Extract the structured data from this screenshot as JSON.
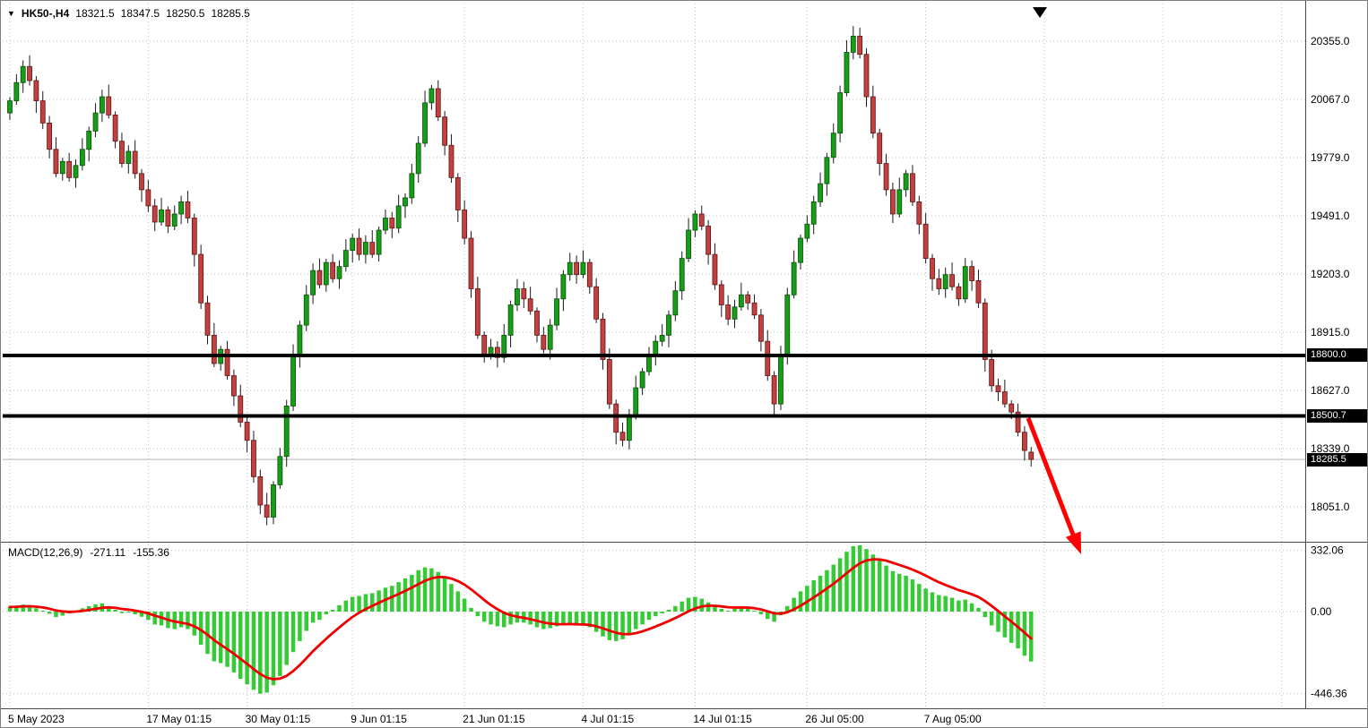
{
  "header": {
    "symbol": "HK50-,H4",
    "open": "18321.5",
    "high": "18347.5",
    "low": "18250.5",
    "close": "18285.5"
  },
  "macd_header": {
    "label": "MACD(12,26,9)",
    "macd_value": "-271.11",
    "signal_value": "-155.36"
  },
  "price_axis": {
    "ticks": [
      20355.0,
      20067.0,
      19779.0,
      19491.0,
      19203.0,
      18915.0,
      18627.0,
      18339.0,
      18051.0
    ],
    "tick_labels": [
      "20355.0",
      "20067.0",
      "19779.0",
      "19491.0",
      "19203.0",
      "18915.0",
      "18627.0",
      "18339.0",
      "18051.0"
    ],
    "level_tags": [
      {
        "label": "18800.0",
        "value": 18800.0
      },
      {
        "label": "18500.7",
        "value": 18500.7
      }
    ],
    "current_price_tag": {
      "label": "18285.5",
      "value": 18285.5
    }
  },
  "time_axis": {
    "labels": [
      "5 May 2023",
      "17 May 01:15",
      "30 May 01:15",
      "9 Jun 01:15",
      "21 Jun 01:15",
      "4 Jul 01:15",
      "14 Jul 01:15",
      "26 Jul 05:00",
      "7 Aug 05:00"
    ],
    "tick_indices": [
      0,
      21,
      36,
      52,
      69,
      87,
      104,
      121,
      139
    ]
  },
  "macd_axis": {
    "ticks": [
      332.06,
      0.0,
      -446.36
    ],
    "tick_labels": [
      "332.06",
      "0.00",
      "-446.36"
    ]
  },
  "colors": {
    "up_candle": "#179e17",
    "down_candle": "#c14040",
    "macd_histogram": "#35cb35",
    "macd_signal": "#ef0000",
    "level_line": "#000000",
    "trend_arrow": "#ff0000",
    "grid": "#bdbdbd",
    "tag_background": "#000000",
    "tag_text": "#ffffff"
  },
  "chart_data": {
    "type": "candlestick+macd",
    "symbol": "HK50-",
    "timeframe": "H4",
    "title": "HK50- H4 chart with MACD(12,26,9) and horizontal support/resistance levels",
    "current_bar": {
      "open": 18321.5,
      "high": 18347.5,
      "low": 18250.5,
      "close": 18285.5
    },
    "support_resistance_levels": [
      18800.0,
      18500.7
    ],
    "current_price": 18285.5,
    "price_axis_ticks": [
      20355.0,
      20067.0,
      19779.0,
      19491.0,
      19203.0,
      18915.0,
      18627.0,
      18339.0,
      18051.0
    ],
    "x_tick_labels": [
      "5 May 2023",
      "17 May 01:15",
      "30 May 01:15",
      "9 Jun 01:15",
      "21 Jun 01:15",
      "4 Jul 01:15",
      "14 Jul 01:15",
      "26 Jul 05:00",
      "7 Aug 05:00"
    ],
    "macd_axis_ticks": [
      332.06,
      0.0,
      -446.36
    ],
    "candles": {
      "first_open": 20000,
      "closes": [
        20060,
        20150,
        20230,
        20160,
        20060,
        19950,
        19820,
        19700,
        19760,
        19680,
        19740,
        19820,
        19910,
        20000,
        20080,
        19990,
        19860,
        19750,
        19810,
        19700,
        19620,
        19540,
        19460,
        19520,
        19440,
        19500,
        19560,
        19480,
        19300,
        19060,
        18900,
        18760,
        18830,
        18700,
        18600,
        18470,
        18380,
        18200,
        18060,
        18000,
        18160,
        18300,
        18550,
        18800,
        18950,
        19100,
        19220,
        19150,
        19260,
        19180,
        19240,
        19320,
        19380,
        19300,
        19360,
        19300,
        19420,
        19480,
        19430,
        19540,
        19580,
        19700,
        19850,
        20050,
        20120,
        19980,
        19840,
        19680,
        19520,
        19380,
        19130,
        18900,
        18800,
        18840,
        18790,
        18900,
        19050,
        19130,
        19080,
        19020,
        18900,
        18830,
        18950,
        19080,
        19200,
        19260,
        19200,
        19260,
        19140,
        18980,
        18780,
        18560,
        18420,
        18380,
        18500,
        18640,
        18720,
        18800,
        18870,
        18900,
        19000,
        19120,
        19280,
        19420,
        19500,
        19440,
        19300,
        19150,
        19050,
        18980,
        19040,
        19100,
        19060,
        19000,
        18870,
        18700,
        18560,
        18800,
        19100,
        19260,
        19380,
        19450,
        19560,
        19650,
        19780,
        19900,
        20100,
        20300,
        20380,
        20290,
        20080,
        19900,
        19750,
        19620,
        19500,
        19620,
        19700,
        19560,
        19450,
        19280,
        19180,
        19130,
        19200,
        19140,
        19080,
        19240,
        19170,
        19060,
        18780,
        18650,
        18620,
        18560,
        18520,
        18420,
        18330,
        18285.5
      ]
    },
    "macd": {
      "fast": 12,
      "slow": 26,
      "signal_period": 9,
      "last_macd": -271.11,
      "last_signal": -155.36,
      "histogram": [
        25,
        32,
        38,
        30,
        18,
        5,
        -12,
        -30,
        -22,
        -10,
        5,
        18,
        30,
        40,
        45,
        30,
        10,
        -8,
        -5,
        -15,
        -28,
        -45,
        -70,
        -75,
        -90,
        -95,
        -85,
        -95,
        -130,
        -180,
        -230,
        -270,
        -280,
        -300,
        -330,
        -365,
        -395,
        -425,
        -446,
        -440,
        -400,
        -350,
        -290,
        -220,
        -160,
        -105,
        -60,
        -45,
        -15,
        10,
        35,
        60,
        80,
        85,
        95,
        100,
        115,
        130,
        140,
        160,
        180,
        200,
        225,
        240,
        235,
        215,
        185,
        150,
        110,
        70,
        20,
        -25,
        -55,
        -70,
        -80,
        -85,
        -70,
        -60,
        -60,
        -70,
        -85,
        -95,
        -90,
        -80,
        -70,
        -65,
        -75,
        -70,
        -85,
        -110,
        -135,
        -155,
        -160,
        -150,
        -125,
        -95,
        -70,
        -45,
        -25,
        -10,
        10,
        30,
        55,
        75,
        80,
        70,
        50,
        30,
        15,
        5,
        15,
        25,
        20,
        5,
        -15,
        -40,
        -55,
        -20,
        30,
        75,
        110,
        140,
        170,
        195,
        225,
        255,
        290,
        325,
        355,
        360,
        340,
        310,
        280,
        250,
        220,
        205,
        195,
        175,
        150,
        125,
        105,
        90,
        85,
        75,
        60,
        65,
        45,
        20,
        -30,
        -75,
        -110,
        -140,
        -170,
        -200,
        -240,
        -271.11
      ]
    },
    "annotations": [
      {
        "type": "arrow",
        "color": "#ff0000",
        "direction": "down-right",
        "note": "drawn from broken 18500.7 support level pointing toward lower prices"
      }
    ]
  }
}
